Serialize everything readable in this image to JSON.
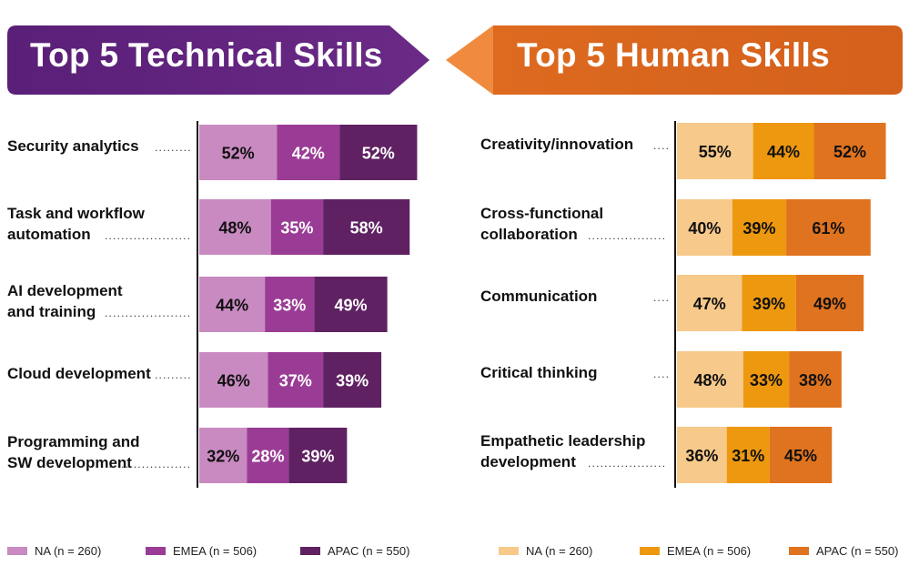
{
  "colors": {
    "tech_banner": "#5B2179",
    "human_banner": "#D9661E",
    "NA_tech": "#C98AC1",
    "EMEA_tech": "#9A3C95",
    "APAC_tech": "#5F2162",
    "NA_human": "#F7C98A",
    "EMEA_human": "#ED980F",
    "APAC_human": "#E0731F"
  },
  "chart_data": [
    {
      "type": "bar",
      "orientation": "horizontal",
      "stacked": true,
      "title": "Top 5 Technical Skills",
      "categories": [
        "Security analytics",
        "Task and workflow\nautomation",
        "AI development\nand training",
        "Cloud development",
        "Programming and\nSW development"
      ],
      "series": [
        {
          "name": "NA (n = 260)",
          "values": [
            52,
            48,
            44,
            46,
            32
          ],
          "color": "#C98AC1"
        },
        {
          "name": "EMEA (n =  506)",
          "values": [
            42,
            35,
            33,
            37,
            28
          ],
          "color": "#9A3C95"
        },
        {
          "name": "APAC (n = 550)",
          "values": [
            52,
            58,
            49,
            39,
            39
          ],
          "color": "#5F2162"
        }
      ],
      "value_suffix": "%",
      "legend": "bottom"
    },
    {
      "type": "bar",
      "orientation": "horizontal",
      "stacked": true,
      "title": "Top 5 Human Skills",
      "categories": [
        "Creativity/innovation",
        "Cross-functional\ncollaboration",
        "Communication",
        "Critical thinking",
        "Empathetic leadership\ndevelopment"
      ],
      "series": [
        {
          "name": "NA (n = 260)",
          "values": [
            55,
            40,
            47,
            48,
            36
          ],
          "color": "#F7C98A"
        },
        {
          "name": "EMEA (n =  506)",
          "values": [
            44,
            39,
            39,
            33,
            31
          ],
          "color": "#ED980F"
        },
        {
          "name": "APAC (n = 550)",
          "values": [
            52,
            61,
            49,
            38,
            45
          ],
          "color": "#E0731F"
        }
      ],
      "value_suffix": "%",
      "legend": "bottom"
    }
  ]
}
